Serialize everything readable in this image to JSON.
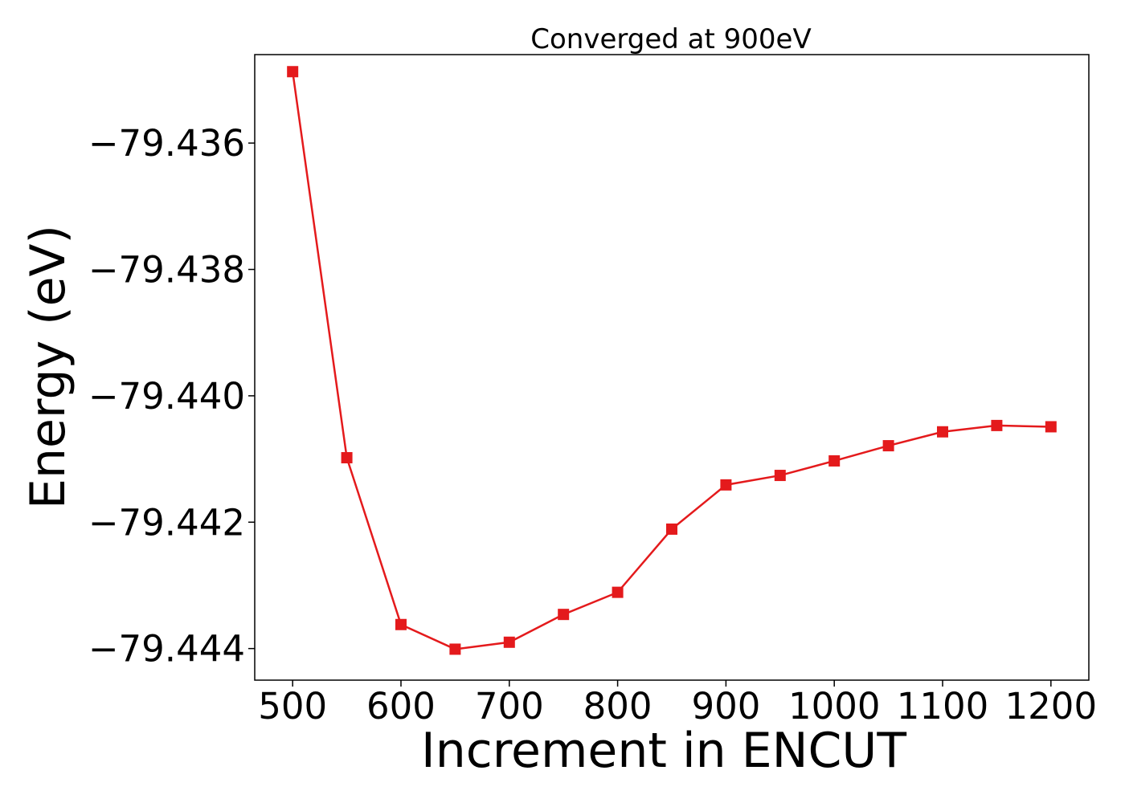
{
  "chart_data": {
    "type": "line",
    "title": "Converged at 900eV",
    "xlabel": "Increment in ENCUT",
    "ylabel": "Energy (eV)",
    "xlim": [
      465,
      1235
    ],
    "ylim": [
      -79.4445,
      -79.4346
    ],
    "xticks": [
      500,
      600,
      700,
      800,
      900,
      1000,
      1100,
      1200
    ],
    "yticks": [
      -79.436,
      -79.438,
      -79.44,
      -79.442,
      -79.444
    ],
    "ytick_labels": [
      "−79.436",
      "−79.438",
      "−79.440",
      "−79.442",
      "−79.444"
    ],
    "grid": false,
    "series": [
      {
        "color": "#e41a1c",
        "marker": "square",
        "x": [
          500,
          550,
          600,
          650,
          700,
          750,
          800,
          850,
          900,
          950,
          1000,
          1050,
          1100,
          1150,
          1200
        ],
        "y": [
          -79.43487,
          -79.44098,
          -79.44362,
          -79.44401,
          -79.4439,
          -79.44346,
          -79.44311,
          -79.44211,
          -79.44141,
          -79.44126,
          -79.44103,
          -79.44079,
          -79.44057,
          -79.44047,
          -79.44049
        ]
      }
    ]
  }
}
